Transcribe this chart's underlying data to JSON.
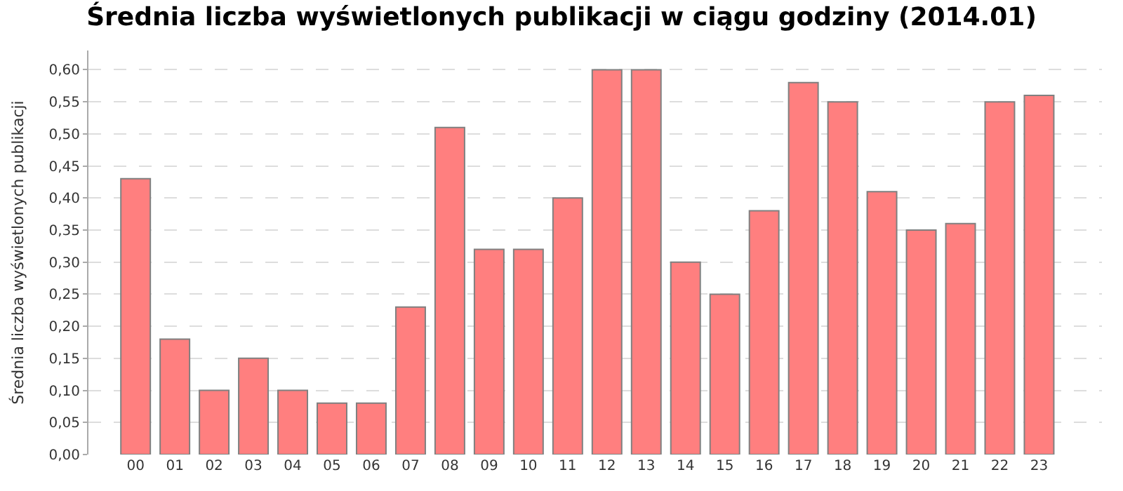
{
  "chart_data": {
    "type": "bar",
    "title": "Średnia liczba wyświetlonych publikacji w ciągu godziny (2014.01)",
    "ylabel": "Średnia liczba wyświetlonych publikacji",
    "categories": [
      "00",
      "01",
      "02",
      "03",
      "04",
      "05",
      "06",
      "07",
      "08",
      "09",
      "10",
      "11",
      "12",
      "13",
      "14",
      "15",
      "16",
      "17",
      "18",
      "19",
      "20",
      "21",
      "22",
      "23"
    ],
    "values": [
      0.43,
      0.18,
      0.1,
      0.15,
      0.1,
      0.08,
      0.08,
      0.23,
      0.51,
      0.32,
      0.32,
      0.4,
      0.6,
      0.6,
      0.3,
      0.25,
      0.38,
      0.58,
      0.55,
      0.41,
      0.35,
      0.36,
      0.55,
      0.56
    ],
    "color": "#ff7f7f",
    "ylim": [
      0,
      0.63
    ],
    "yticks": [
      {
        "value": 0,
        "label": "0,00"
      },
      {
        "value": 0.05,
        "label": "0,05"
      },
      {
        "value": 0.1,
        "label": "0,10"
      },
      {
        "value": 0.15,
        "label": "0,15"
      },
      {
        "value": 0.2,
        "label": "0,20"
      },
      {
        "value": 0.25,
        "label": "0,25"
      },
      {
        "value": 0.3,
        "label": "0,30"
      },
      {
        "value": 0.35,
        "label": "0,35"
      },
      {
        "value": 0.4,
        "label": "0,40"
      },
      {
        "value": 0.45,
        "label": "0,45"
      },
      {
        "value": 0.5,
        "label": "0,50"
      },
      {
        "value": 0.55,
        "label": "0,55"
      },
      {
        "value": 0.6,
        "label": "0,60"
      }
    ],
    "grid": "y"
  }
}
